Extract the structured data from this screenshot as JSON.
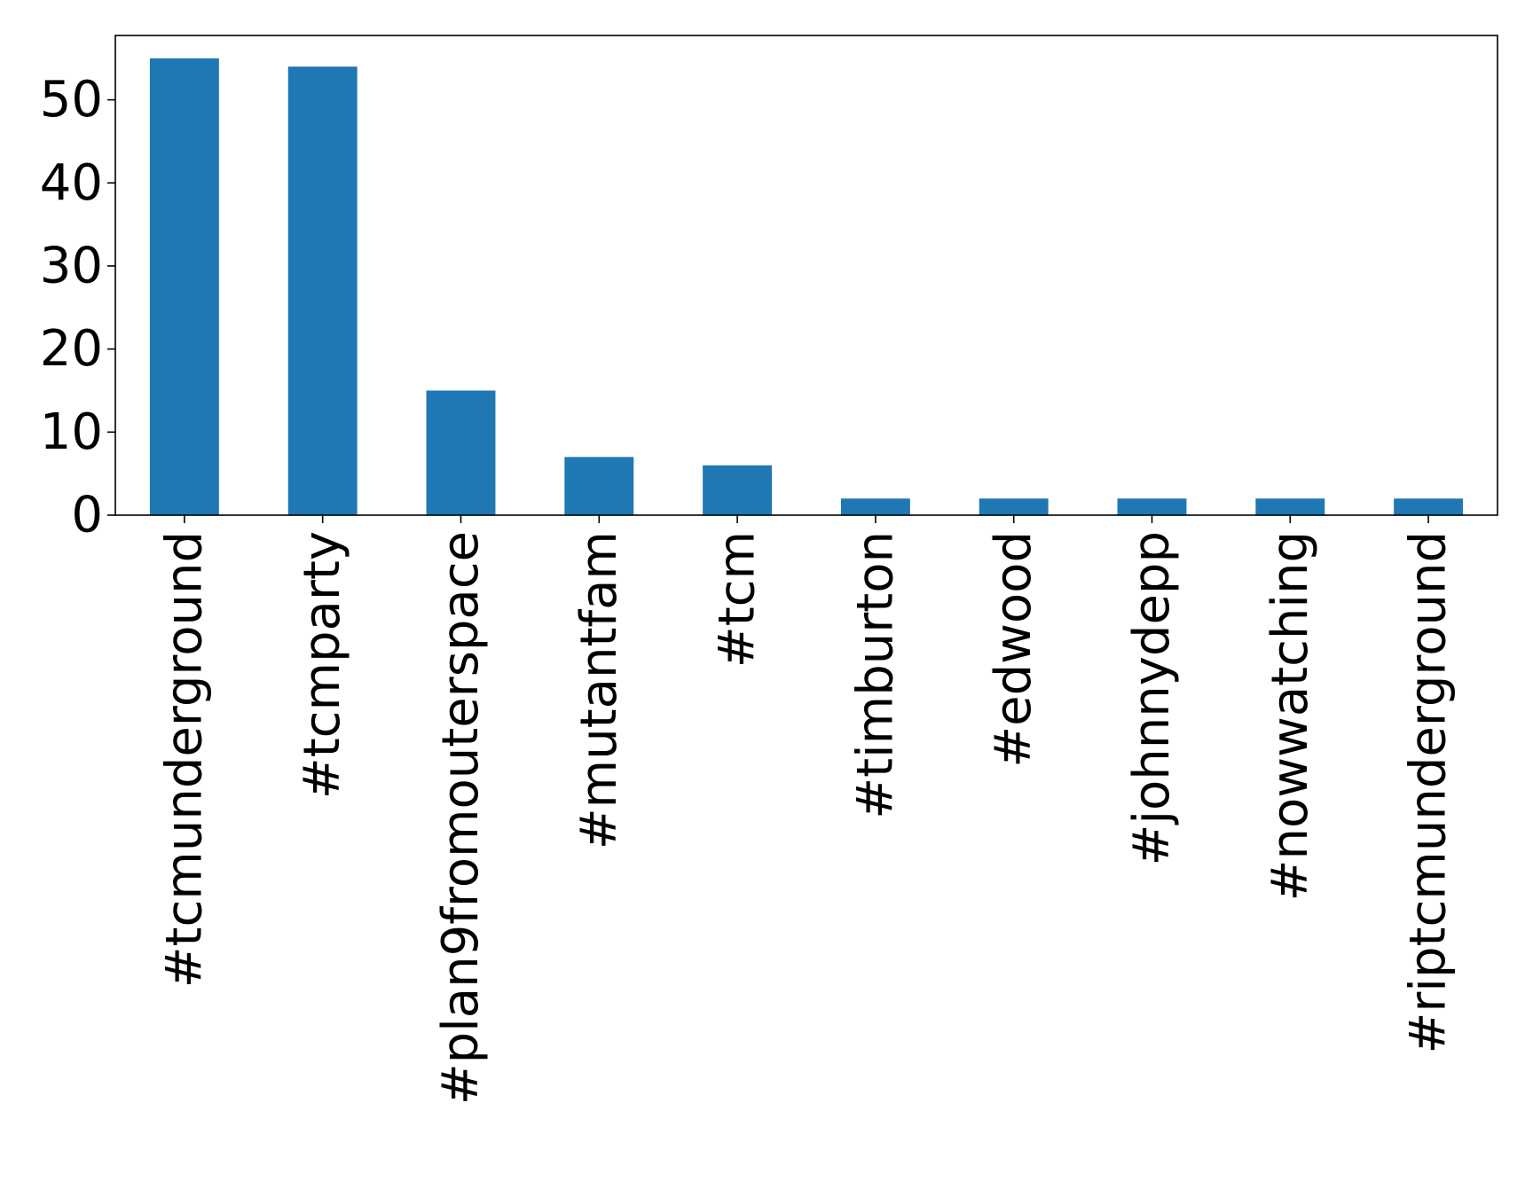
{
  "chart_data": {
    "type": "bar",
    "title": "",
    "xlabel": "",
    "ylabel": "",
    "categories": [
      "#tcmunderground",
      "#tcmparty",
      "#plan9fromouterspace",
      "#mutantfam",
      "#tcm",
      "#timburton",
      "#edwood",
      "#johnnydepp",
      "#nowwatching",
      "#riptcmunderground"
    ],
    "values": [
      55,
      54,
      15,
      7,
      6,
      2,
      2,
      2,
      2,
      2
    ],
    "ylim": [
      0,
      57.75
    ],
    "yticks": [
      0,
      10,
      20,
      30,
      40,
      50
    ],
    "grid": false,
    "legend": "none",
    "bar_color": "#1f77b4",
    "axis_color": "#000000",
    "tick_label_rotation": "vertical"
  }
}
